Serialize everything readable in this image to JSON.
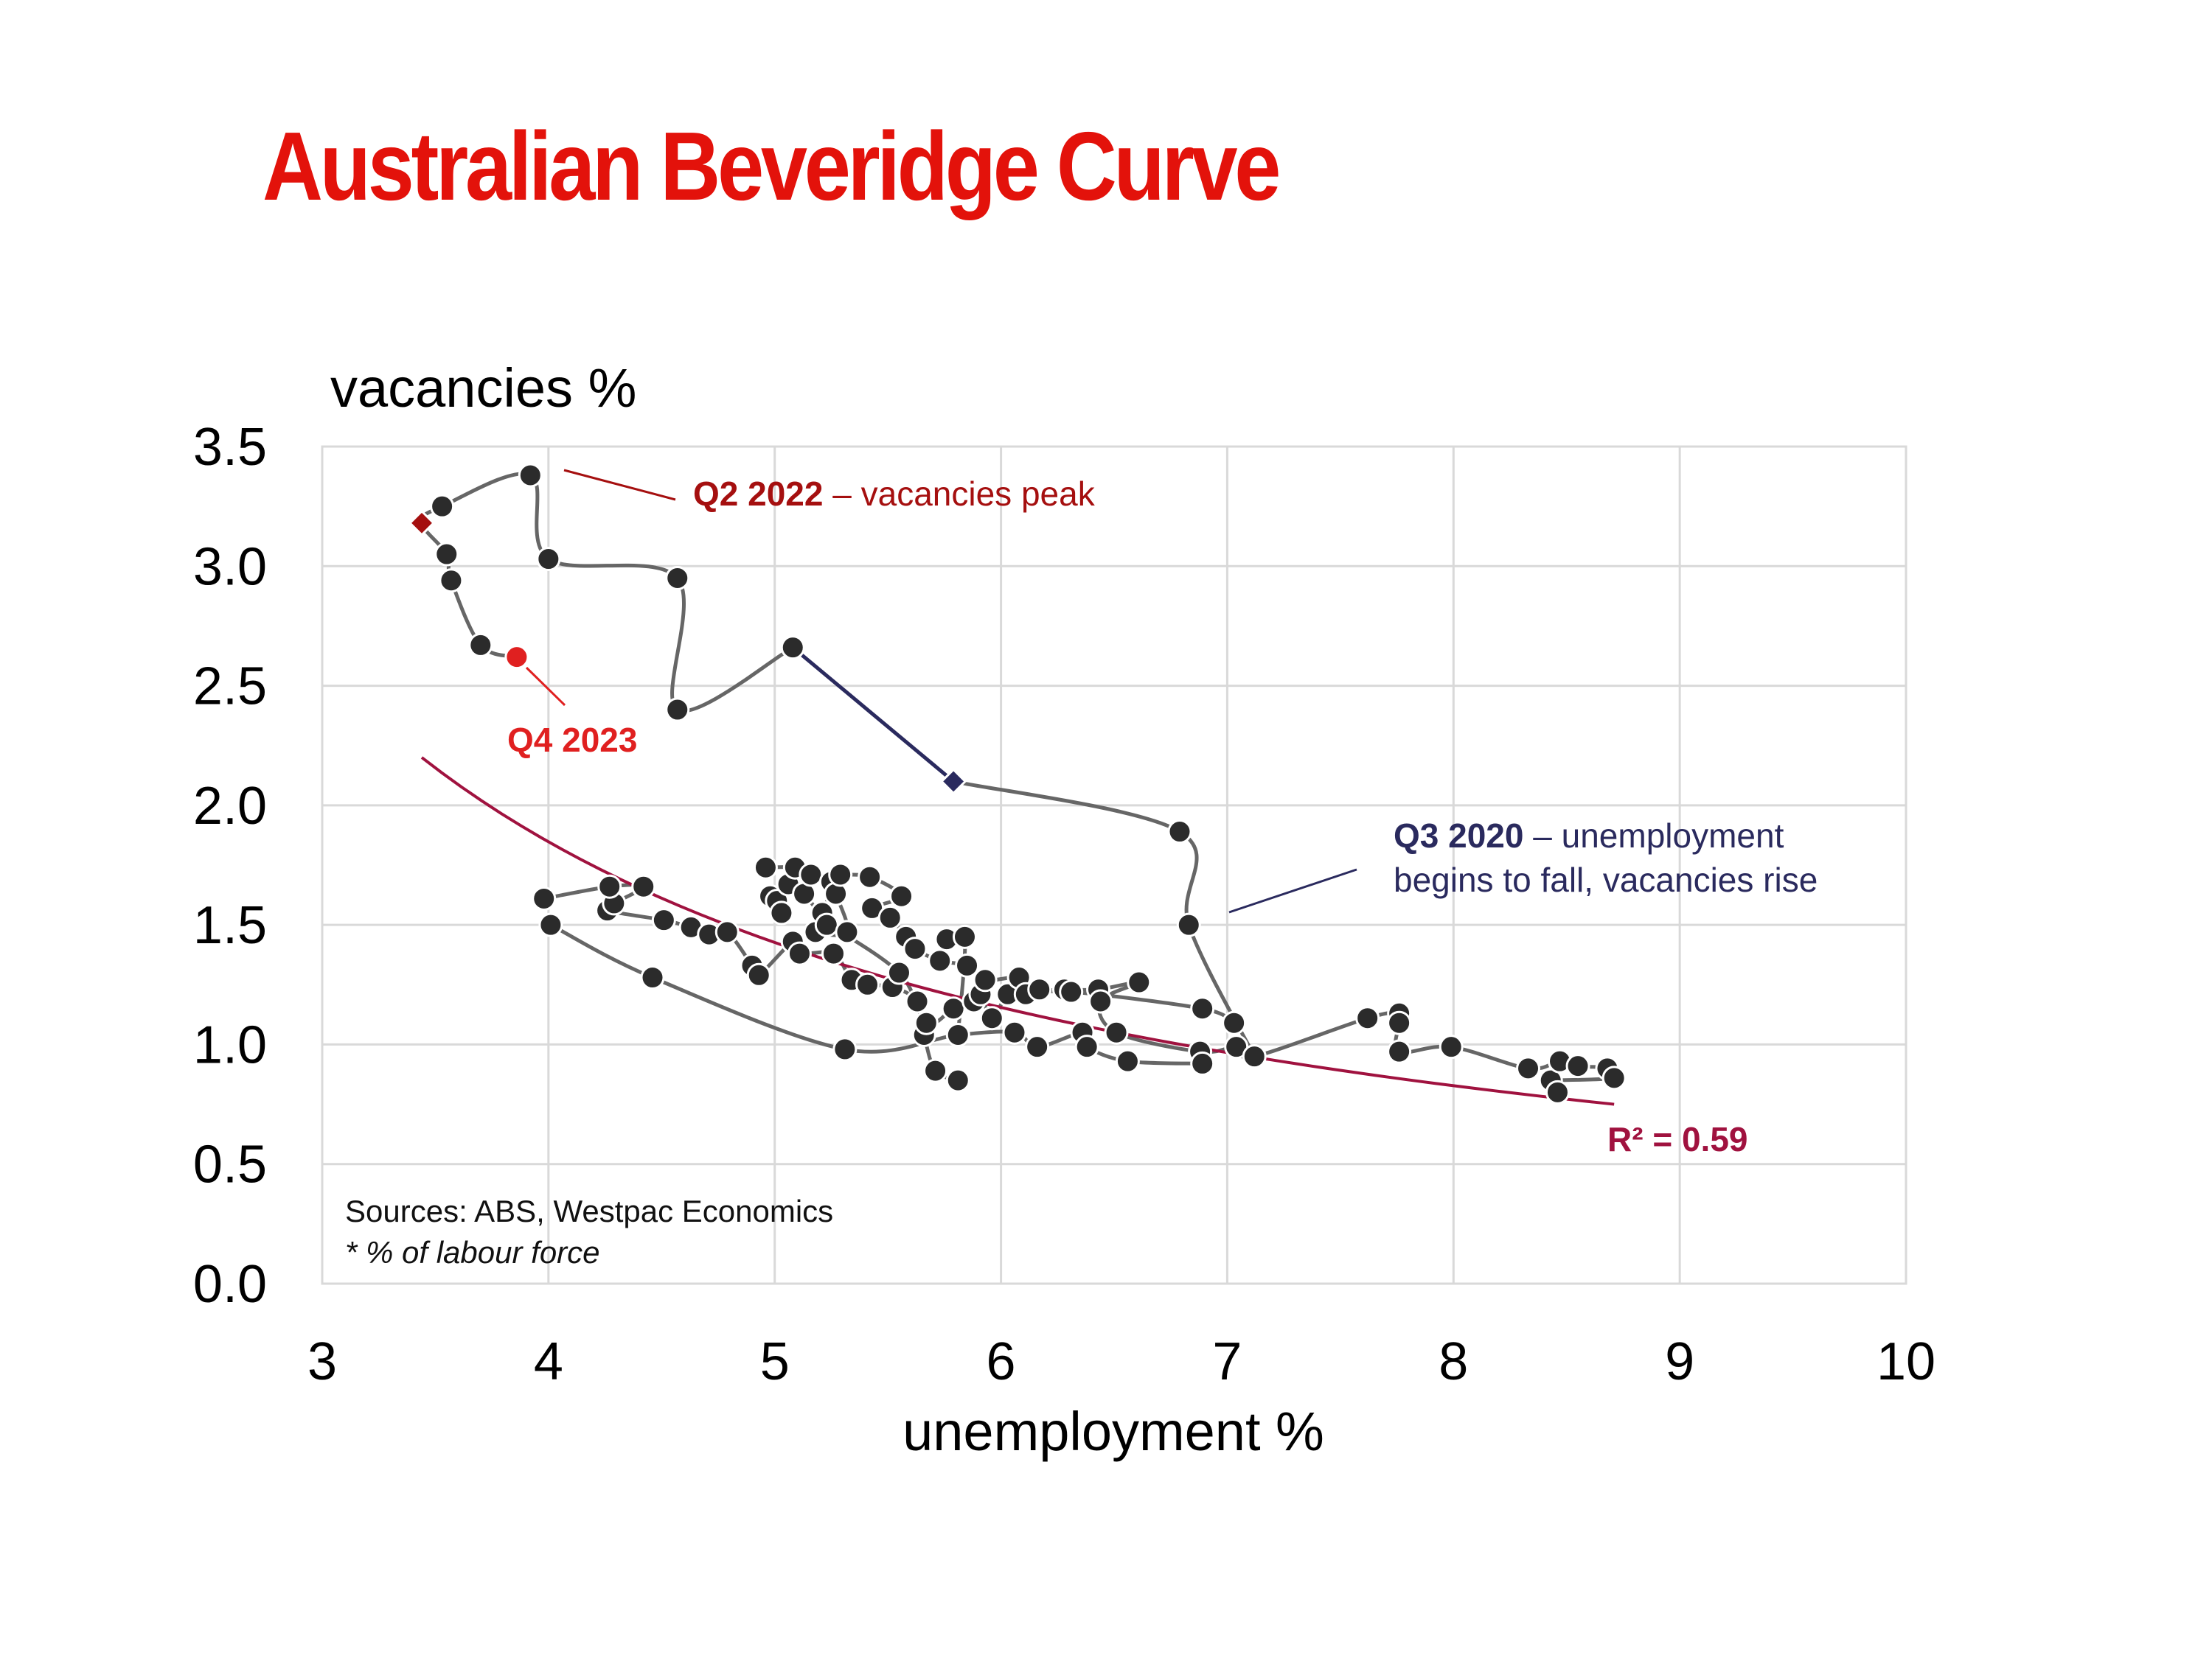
{
  "title": "Australian Beveridge Curve",
  "colors": {
    "title": "#e3120b",
    "marker": "#2b2b2b",
    "path": "#666666",
    "path_covid": "#2a2a5e",
    "trend": "#a0123f",
    "q2_2022": "#a50f0f",
    "q4_2023": "#e02020",
    "q3_2020": "#2a2a5e",
    "grid": "#d9d9d9"
  },
  "chart_data": {
    "type": "scatter",
    "xlabel": "unemployment %",
    "ylabel": "vacancies %",
    "xlim": [
      3,
      10
    ],
    "ylim": [
      0,
      3.5
    ],
    "xticks": [
      "3",
      "4",
      "5",
      "6",
      "7",
      "8",
      "9",
      "10"
    ],
    "yticks": [
      "0.0",
      "0.5",
      "1.0",
      "1.5",
      "2.0",
      "2.5",
      "3.0",
      "3.5"
    ],
    "grid": true,
    "series": [
      {
        "points": [
          [
            3.98,
            1.61
          ],
          [
            4.01,
            1.5
          ],
          [
            4.26,
            1.56
          ],
          [
            4.29,
            1.59
          ],
          [
            4.27,
            1.66
          ],
          [
            4.42,
            1.66
          ],
          [
            4.46,
            1.28
          ],
          [
            4.51,
            1.52
          ],
          [
            4.63,
            1.49
          ],
          [
            4.71,
            1.46
          ],
          [
            4.79,
            1.47
          ],
          [
            4.9,
            1.33
          ],
          [
            4.93,
            1.29
          ],
          [
            4.96,
            1.74
          ],
          [
            4.98,
            1.62
          ],
          [
            5.01,
            1.6
          ],
          [
            5.03,
            1.55
          ],
          [
            5.06,
            1.67
          ],
          [
            5.08,
            1.43
          ],
          [
            5.09,
            1.74
          ],
          [
            5.11,
            1.38
          ],
          [
            5.13,
            1.63
          ],
          [
            5.16,
            1.71
          ],
          [
            5.18,
            1.47
          ],
          [
            5.21,
            1.55
          ],
          [
            5.23,
            1.5
          ],
          [
            5.25,
            1.68
          ],
          [
            5.26,
            1.38
          ],
          [
            5.27,
            1.63
          ],
          [
            5.29,
            1.71
          ],
          [
            5.31,
            0.98
          ],
          [
            5.32,
            1.47
          ],
          [
            5.34,
            1.27
          ],
          [
            5.41,
            1.25
          ],
          [
            5.42,
            1.7
          ],
          [
            5.43,
            1.57
          ],
          [
            5.51,
            1.53
          ],
          [
            5.52,
            1.24
          ],
          [
            5.55,
            1.3
          ],
          [
            5.56,
            1.62
          ],
          [
            5.58,
            1.45
          ],
          [
            5.62,
            1.4
          ],
          [
            5.63,
            1.18
          ],
          [
            5.66,
            1.04
          ],
          [
            5.67,
            1.09
          ],
          [
            5.71,
            0.89
          ],
          [
            5.73,
            1.35
          ],
          [
            5.76,
            1.44
          ],
          [
            5.79,
            1.15
          ],
          [
            5.81,
            1.04
          ],
          [
            5.81,
            0.85
          ],
          [
            5.84,
            1.45
          ],
          [
            5.85,
            1.33
          ],
          [
            5.88,
            1.18
          ],
          [
            5.91,
            1.21
          ],
          [
            5.93,
            1.27
          ],
          [
            5.96,
            1.11
          ],
          [
            6.03,
            1.21
          ],
          [
            6.06,
            1.05
          ],
          [
            6.08,
            1.28
          ],
          [
            6.11,
            1.21
          ],
          [
            6.16,
            0.99
          ],
          [
            6.17,
            1.23
          ],
          [
            6.28,
            1.23
          ],
          [
            6.31,
            1.22
          ],
          [
            6.36,
            1.05
          ],
          [
            6.38,
            0.99
          ],
          [
            6.43,
            1.23
          ],
          [
            6.44,
            1.18
          ],
          [
            6.51,
            1.05
          ],
          [
            6.56,
            0.93
          ],
          [
            6.61,
            1.26
          ],
          [
            6.89,
            1.15
          ],
          [
            6.88,
            0.97
          ],
          [
            6.89,
            0.92
          ],
          [
            7.03,
            1.09
          ],
          [
            7.04,
            0.99
          ],
          [
            7.12,
            0.95
          ],
          [
            7.62,
            1.11
          ],
          [
            7.76,
            1.13
          ],
          [
            7.76,
            1.09
          ],
          [
            7.76,
            0.97
          ],
          [
            7.99,
            0.99
          ],
          [
            8.33,
            0.9
          ],
          [
            8.43,
            0.85
          ],
          [
            8.46,
            0.8
          ],
          [
            8.47,
            0.93
          ],
          [
            8.55,
            0.91
          ],
          [
            8.68,
            0.9
          ],
          [
            8.71,
            0.86
          ]
        ]
      },
      {
        "points": [
          [
            6.83,
            1.5
          ],
          [
            6.79,
            1.89
          ],
          [
            5.79,
            2.1
          ],
          [
            5.08,
            2.66
          ],
          [
            4.57,
            2.4
          ],
          [
            4.57,
            2.95
          ],
          [
            4.0,
            3.03
          ],
          [
            3.92,
            3.38
          ],
          [
            3.53,
            3.25
          ],
          [
            3.44,
            3.18
          ],
          [
            3.55,
            3.05
          ],
          [
            3.57,
            2.94
          ],
          [
            3.7,
            2.67
          ],
          [
            3.86,
            2.62
          ]
        ]
      }
    ],
    "trendline": {
      "type": "power",
      "from": [
        3.44,
        2.2
      ],
      "to": [
        8.71,
        0.75
      ]
    },
    "annotations": {
      "q2_2022": {
        "bold": "Q2 2022",
        "rest": " – vacancies peak"
      },
      "q4_2023": {
        "text": "Q4 2023"
      },
      "q3_2020": {
        "bold": "Q3 2020",
        "rest": " – unemployment",
        "line2": "begins to fall, vacancies rise"
      },
      "r2": "R² = 0.59"
    },
    "sources": "Sources: ABS, Westpac Economics",
    "footnote": "* % of labour force"
  }
}
